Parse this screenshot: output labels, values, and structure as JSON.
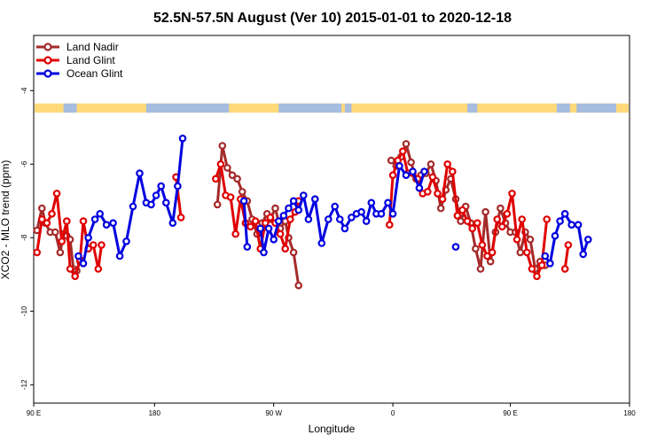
{
  "chart_data": {
    "type": "line",
    "title": "52.5N-57.5N August (Ver 10)   2015-01-01 to 2020-12-18",
    "xlabel": "Longitude",
    "ylabel": "XCO2 - MLO trend (ppm)",
    "xlim": [
      -90,
      270
    ],
    "ylim": [
      -12.5,
      -2.5
    ],
    "x_ticks": [
      {
        "value": -90,
        "label": "90 E"
      },
      {
        "value": -17,
        "label": "180"
      },
      {
        "value": 55,
        "label": "90 W"
      },
      {
        "value": 127,
        "label": "0"
      },
      {
        "value": 198,
        "label": "90 E"
      },
      {
        "value": 270,
        "label": "180"
      }
    ],
    "y_ticks": [
      {
        "value": -4,
        "label": "-4"
      },
      {
        "value": -6,
        "label": "-6"
      },
      {
        "value": -8,
        "label": "-8"
      },
      {
        "value": -10,
        "label": "-10"
      },
      {
        "value": -12,
        "label": "-12"
      }
    ],
    "map_strip": {
      "y_top": -4.35,
      "y_bottom": -4.6,
      "land_color": "#ffd97a",
      "ocean_color": "#a6bde0"
    },
    "series": [
      {
        "name": "Land Nadir",
        "color": "#a52a2a",
        "segments": [
          [
            [
              -88,
              -7.8
            ],
            [
              -85,
              -7.2
            ],
            [
              -83,
              -7.6
            ],
            [
              -80,
              -7.85
            ],
            [
              -77,
              -7.85
            ],
            [
              -74,
              -8.4
            ],
            [
              -72,
              -7.9
            ],
            [
              -70,
              -7.95
            ],
            [
              -68,
              -8.05
            ],
            [
              -66,
              -8.85
            ],
            [
              -64,
              -8.9
            ],
            [
              -62,
              -8.65
            ]
          ],
          [
            [
              21,
              -7.1
            ],
            [
              24,
              -5.5
            ],
            [
              27,
              -6.1
            ],
            [
              30,
              -6.3
            ],
            [
              33,
              -6.4
            ],
            [
              36,
              -6.75
            ],
            [
              39,
              -7.0
            ],
            [
              42,
              -7.5
            ],
            [
              45,
              -7.9
            ],
            [
              48,
              -7.6
            ],
            [
              51,
              -7.35
            ],
            [
              53,
              -7.5
            ],
            [
              56,
              -7.2
            ],
            [
              59,
              -7.75
            ],
            [
              62,
              -7.55
            ],
            [
              64,
              -8.0
            ],
            [
              67,
              -8.4
            ],
            [
              70,
              -9.3
            ]
          ],
          [
            [
              126,
              -5.9
            ],
            [
              129,
              -6.05
            ],
            [
              132,
              -5.8
            ],
            [
              135,
              -5.45
            ],
            [
              138,
              -5.95
            ],
            [
              141,
              -6.4
            ],
            [
              144,
              -6.3
            ],
            [
              147,
              -6.25
            ],
            [
              150,
              -6.0
            ],
            [
              153,
              -6.45
            ],
            [
              156,
              -7.2
            ],
            [
              159,
              -6.7
            ],
            [
              162,
              -6.4
            ],
            [
              165,
              -6.95
            ],
            [
              168,
              -7.55
            ],
            [
              171,
              -7.15
            ],
            [
              174,
              -7.6
            ],
            [
              177,
              -8.3
            ],
            [
              180,
              -8.85
            ],
            [
              183,
              -7.3
            ],
            [
              186,
              -8.65
            ],
            [
              189,
              -7.85
            ],
            [
              192,
              -7.2
            ],
            [
              195,
              -7.6
            ],
            [
              198,
              -7.85
            ],
            [
              201,
              -7.85
            ],
            [
              204,
              -8.4
            ],
            [
              207,
              -7.85
            ],
            [
              210,
              -8.05
            ],
            [
              213,
              -8.85
            ],
            [
              216,
              -8.65
            ],
            [
              219,
              -8.75
            ]
          ]
        ]
      },
      {
        "name": "Land Glint",
        "color": "#e00000",
        "segments": [
          [
            [
              -88,
              -8.4
            ],
            [
              -85,
              -7.5
            ],
            [
              -82,
              -7.6
            ],
            [
              -79,
              -7.35
            ],
            [
              -76,
              -6.8
            ],
            [
              -73,
              -8.1
            ],
            [
              -70,
              -7.55
            ],
            [
              -68,
              -8.85
            ],
            [
              -65,
              -9.05
            ],
            [
              -62,
              -8.6
            ],
            [
              -60,
              -7.55
            ],
            [
              -57,
              -8.3
            ],
            [
              -54,
              -8.2
            ],
            [
              -51,
              -8.85
            ],
            [
              -49,
              -8.2
            ]
          ],
          [
            [
              -4,
              -6.35
            ],
            [
              -1,
              -7.45
            ]
          ],
          [
            [
              20,
              -6.4
            ],
            [
              23,
              -6.0
            ],
            [
              26,
              -6.85
            ],
            [
              29,
              -6.9
            ],
            [
              32,
              -7.9
            ],
            [
              35,
              -6.95
            ],
            [
              38,
              -7.6
            ],
            [
              41,
              -7.7
            ],
            [
              44,
              -7.55
            ],
            [
              47,
              -8.3
            ],
            [
              50,
              -7.6
            ],
            [
              53,
              -7.45
            ],
            [
              56,
              -7.6
            ],
            [
              59,
              -7.9
            ],
            [
              62,
              -8.3
            ],
            [
              65,
              -7.5
            ],
            [
              68,
              -7.3
            ],
            [
              70,
              -7.0
            ]
          ],
          [
            [
              125,
              -7.65
            ],
            [
              127,
              -6.3
            ],
            [
              130,
              -5.9
            ],
            [
              133,
              -5.65
            ],
            [
              136,
              -6.25
            ],
            [
              139,
              -6.25
            ],
            [
              142,
              -6.4
            ],
            [
              145,
              -6.8
            ],
            [
              148,
              -6.75
            ],
            [
              151,
              -6.35
            ],
            [
              154,
              -6.8
            ],
            [
              157,
              -6.95
            ],
            [
              160,
              -6.0
            ],
            [
              163,
              -6.2
            ],
            [
              166,
              -7.4
            ],
            [
              169,
              -7.25
            ],
            [
              172,
              -7.55
            ],
            [
              175,
              -7.75
            ],
            [
              178,
              -7.6
            ],
            [
              181,
              -8.2
            ],
            [
              184,
              -8.5
            ],
            [
              187,
              -8.4
            ],
            [
              190,
              -7.5
            ],
            [
              193,
              -7.7
            ],
            [
              196,
              -7.35
            ],
            [
              199,
              -6.8
            ],
            [
              202,
              -8.05
            ],
            [
              205,
              -7.5
            ],
            [
              208,
              -8.4
            ],
            [
              211,
              -8.85
            ],
            [
              214,
              -9.05
            ],
            [
              217,
              -8.75
            ],
            [
              220,
              -7.5
            ]
          ],
          [
            [
              231,
              -8.85
            ],
            [
              233,
              -8.2
            ]
          ]
        ]
      },
      {
        "name": "Ocean Glint",
        "color": "#0000e0",
        "segments": [
          [
            [
              -63,
              -8.5
            ],
            [
              -60,
              -8.7
            ],
            [
              -57,
              -8.0
            ],
            [
              -53,
              -7.5
            ],
            [
              -50,
              -7.35
            ],
            [
              -46,
              -7.65
            ],
            [
              -42,
              -7.6
            ],
            [
              -38,
              -8.5
            ],
            [
              -34,
              -8.1
            ],
            [
              -30,
              -7.15
            ],
            [
              -26,
              -6.25
            ],
            [
              -22,
              -7.05
            ],
            [
              -19,
              -7.1
            ],
            [
              -16,
              -6.85
            ],
            [
              -13,
              -6.6
            ],
            [
              -10,
              -7.05
            ],
            [
              -6,
              -7.6
            ],
            [
              -3,
              -6.6
            ],
            [
              0,
              -5.3
            ]
          ],
          [
            [
              37,
              -7.0
            ],
            [
              39,
              -8.25
            ]
          ],
          [
            [
              47,
              -7.75
            ],
            [
              49,
              -8.4
            ],
            [
              52,
              -7.75
            ],
            [
              55,
              -8.05
            ],
            [
              58,
              -7.55
            ],
            [
              61,
              -7.4
            ],
            [
              64,
              -7.2
            ],
            [
              67,
              -7.0
            ],
            [
              70,
              -7.25
            ],
            [
              73,
              -6.85
            ],
            [
              76,
              -7.5
            ],
            [
              80,
              -6.95
            ],
            [
              84,
              -8.15
            ],
            [
              88,
              -7.5
            ],
            [
              92,
              -7.15
            ],
            [
              95,
              -7.5
            ],
            [
              98,
              -7.75
            ],
            [
              102,
              -7.45
            ],
            [
              105,
              -7.35
            ],
            [
              108,
              -7.3
            ],
            [
              111,
              -7.55
            ],
            [
              114,
              -7.05
            ],
            [
              117,
              -7.35
            ],
            [
              120,
              -7.35
            ],
            [
              124,
              -7.05
            ],
            [
              127,
              -7.35
            ],
            [
              131,
              -6.05
            ],
            [
              135,
              -6.3
            ],
            [
              139,
              -6.2
            ],
            [
              143,
              -6.65
            ],
            [
              146,
              -6.2
            ]
          ],
          [
            [
              165,
              -8.25
            ]
          ],
          [
            [
              219,
              -8.5
            ],
            [
              222,
              -8.7
            ],
            [
              225,
              -7.95
            ],
            [
              228,
              -7.55
            ],
            [
              231,
              -7.35
            ],
            [
              235,
              -7.65
            ],
            [
              239,
              -7.65
            ],
            [
              242,
              -8.45
            ],
            [
              245,
              -8.05
            ]
          ]
        ]
      }
    ]
  }
}
